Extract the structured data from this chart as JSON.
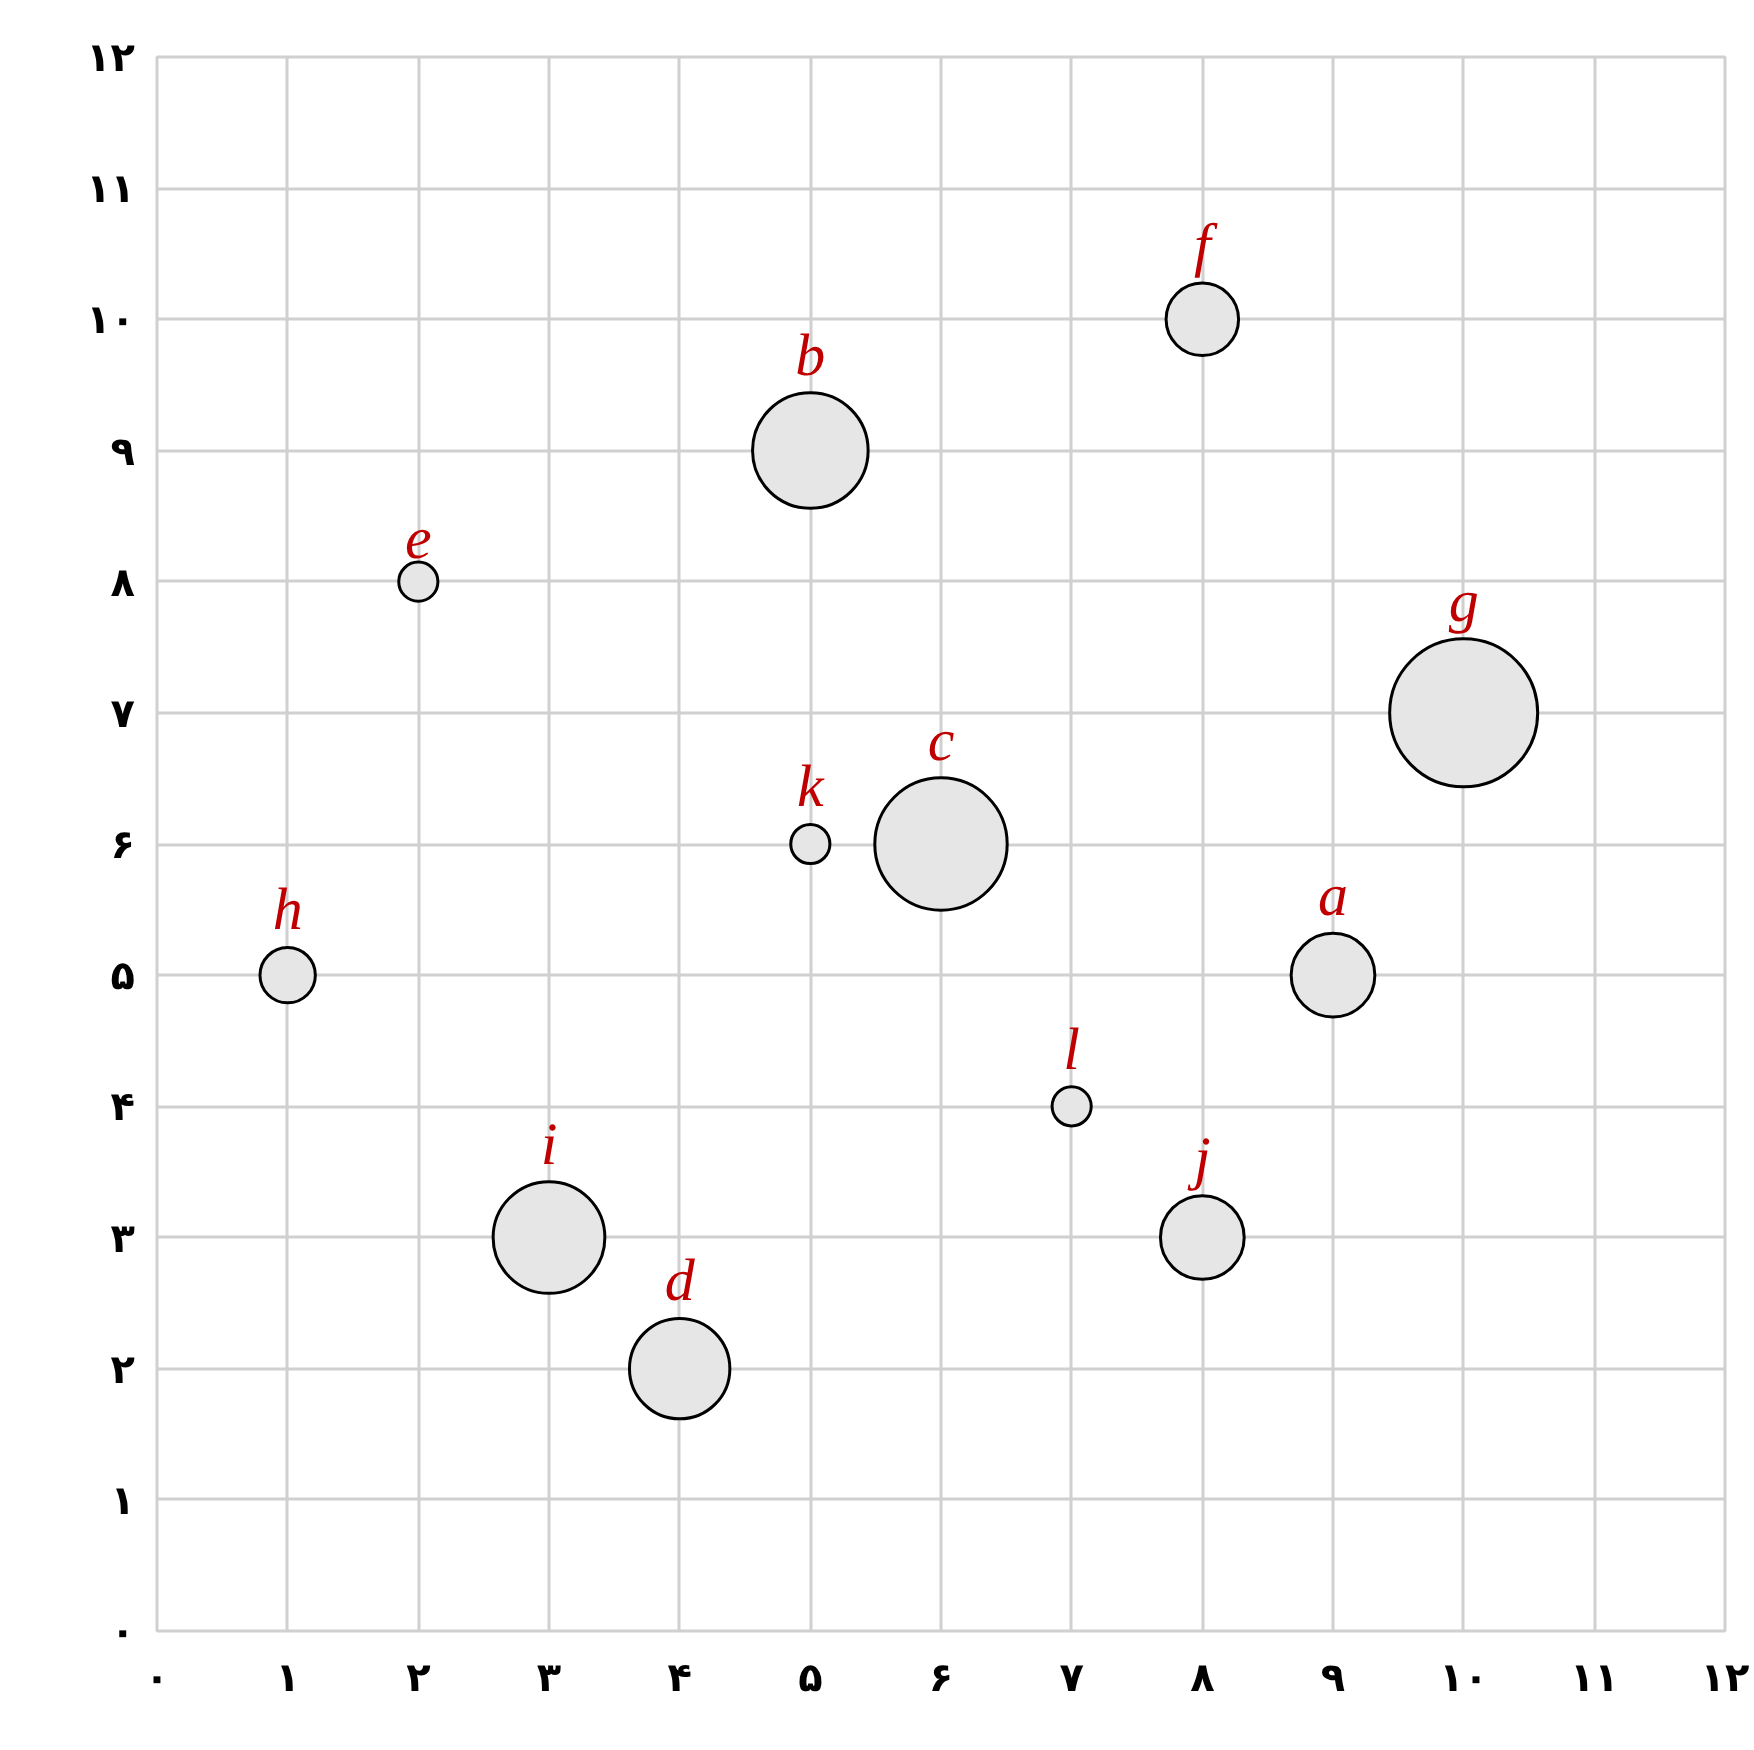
{
  "chart_data": {
    "type": "bubble",
    "x": [
      9,
      5,
      6,
      4,
      2,
      8,
      10,
      1,
      3,
      8,
      5,
      7
    ],
    "series": [
      {
        "color": "#e6e6e6",
        "values": [
          5,
          9,
          6,
          2,
          8,
          10,
          7,
          5,
          3,
          3,
          6,
          4
        ],
        "sizes": [
          0.32,
          0.61,
          0.8,
          0.46,
          0.07,
          0.24,
          1,
          0.14,
          0.57,
          0.32,
          0.07,
          0.07
        ]
      }
    ],
    "annotations": [
      {
        "text": "a",
        "x": 9,
        "y": 5
      },
      {
        "text": "b",
        "x": 5,
        "y": 9
      },
      {
        "text": "c",
        "x": 6,
        "y": 6
      },
      {
        "text": "d",
        "x": 4,
        "y": 2
      },
      {
        "text": "e",
        "x": 2,
        "y": 8
      },
      {
        "text": "f",
        "x": 8,
        "y": 10
      },
      {
        "text": "g",
        "x": 10,
        "y": 7
      },
      {
        "text": "h",
        "x": 1,
        "y": 5
      },
      {
        "text": "i",
        "x": 3,
        "y": 3
      },
      {
        "text": "j",
        "x": 8,
        "y": 3
      },
      {
        "text": "k",
        "x": 5,
        "y": 6
      },
      {
        "text": "l",
        "x": 7,
        "y": 4
      }
    ],
    "xlim": [
      0,
      12
    ],
    "ylim": [
      0,
      12
    ],
    "xticks": [
      {
        "value": 0,
        "label": "۰"
      },
      {
        "value": 1,
        "label": "۱"
      },
      {
        "value": 2,
        "label": "۲"
      },
      {
        "value": 3,
        "label": "۳"
      },
      {
        "value": 4,
        "label": "۴"
      },
      {
        "value": 5,
        "label": "۵"
      },
      {
        "value": 6,
        "label": "۶"
      },
      {
        "value": 7,
        "label": "۷"
      },
      {
        "value": 8,
        "label": "۸"
      },
      {
        "value": 9,
        "label": "۹"
      },
      {
        "value": 10,
        "label": "۱۰"
      },
      {
        "value": 11,
        "label": "۱۱"
      },
      {
        "value": 12,
        "label": "۱۲"
      }
    ],
    "yticks": [
      {
        "value": 0,
        "label": "۰"
      },
      {
        "value": 1,
        "label": "۱"
      },
      {
        "value": 2,
        "label": "۲"
      },
      {
        "value": 3,
        "label": "۳"
      },
      {
        "value": 4,
        "label": "۴"
      },
      {
        "value": 5,
        "label": "۵"
      },
      {
        "value": 6,
        "label": "۶"
      },
      {
        "value": 7,
        "label": "۷"
      },
      {
        "value": 8,
        "label": "۸"
      },
      {
        "value": 9,
        "label": "۹"
      },
      {
        "value": 10,
        "label": "۱۰"
      },
      {
        "value": 11,
        "label": "۱۱"
      },
      {
        "value": 12,
        "label": "۱۲"
      }
    ],
    "grid": true,
    "marker": "circle"
  }
}
